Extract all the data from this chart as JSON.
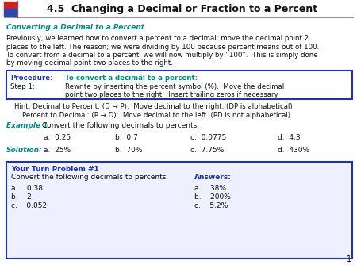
{
  "title": "4.5  Changing a Decimal or Fraction to a Percent",
  "bg_color": "#ffffff",
  "teal_color": "#008B8B",
  "blue_color": "#2233aa",
  "dark_color": "#111111",
  "section_heading": "Converting a Decimal to a Percent",
  "para1_line1": "Previously, we learned how to convert a percent to a decimal; move the decimal point 2",
  "para1_line2": "places to the left. The reason; we were dividing by 100 because percent means out of 100.",
  "para1_line3": "To convert from a decimal to a percent, we will now multiply by “100”.  This is simply done",
  "para1_line4": "by moving decimal point two places to the right.",
  "proc_label": "Procedure:",
  "proc_text": "To convert a decimal to a percent:",
  "step1_label": "Step 1:",
  "step1_text1": "Rewrite by inserting the percent symbol (%).  Move the decimal",
  "step1_text2": "point two places to the right.  Insert trailing zeros if necessary.",
  "hint1": "Hint: Decimal to Percent: (D → P):  Move decimal to the right. (DP is alphabetical)",
  "hint2": "Percent to Decimal: (P → D):  Move decimal to the left. (PD is not alphabetical)",
  "example_label": "Example 1.",
  "example_text": " Convert the following decimals to percents.",
  "prob_a": "a.  0.25",
  "prob_b": "b.  0.7",
  "prob_c": "c.  0.0775",
  "prob_d": "d.  4.3",
  "solution_label": "Solution:",
  "sol_a": "a.  25%",
  "sol_b": "b.  70%",
  "sol_c": "c.  7.75%",
  "sol_d": "d.  430%",
  "ytp_title": "Your Turn Problem #1",
  "ytp_desc": "Convert the following decimals to percents.",
  "ytp_answers_label": "Answers:",
  "ytp_pa": "a.    0.38",
  "ytp_pb": "b.    2",
  "ytp_pc": "c.    0.052",
  "ytp_aa": "a.    38%",
  "ytp_ab": "b.    200%",
  "ytp_ac": "c.    5.2%",
  "page_num": "1",
  "red_sq": "#cc2222",
  "blue_sq": "#3344aa",
  "line_color": "#999999"
}
